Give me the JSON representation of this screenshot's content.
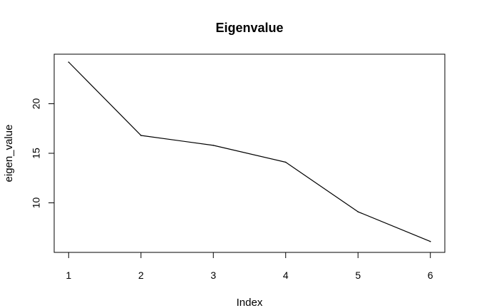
{
  "chart_data": {
    "type": "line",
    "title": "Eigenvalue",
    "xlabel": "Index",
    "ylabel": "eigen_value",
    "x": [
      1,
      2,
      3,
      4,
      5,
      6
    ],
    "series": [
      {
        "values": [
          24.2,
          16.8,
          15.8,
          14.1,
          9.1,
          6.1
        ]
      }
    ],
    "x_ticks": [
      "1",
      "2",
      "3",
      "4",
      "5",
      "6"
    ],
    "y_ticks": [
      "10",
      "15",
      "20"
    ],
    "xlim": [
      0.8,
      6.2
    ],
    "ylim": [
      5.0,
      25.0
    ],
    "grid": false,
    "line_color": "#000000",
    "axis_color": "#000000"
  }
}
